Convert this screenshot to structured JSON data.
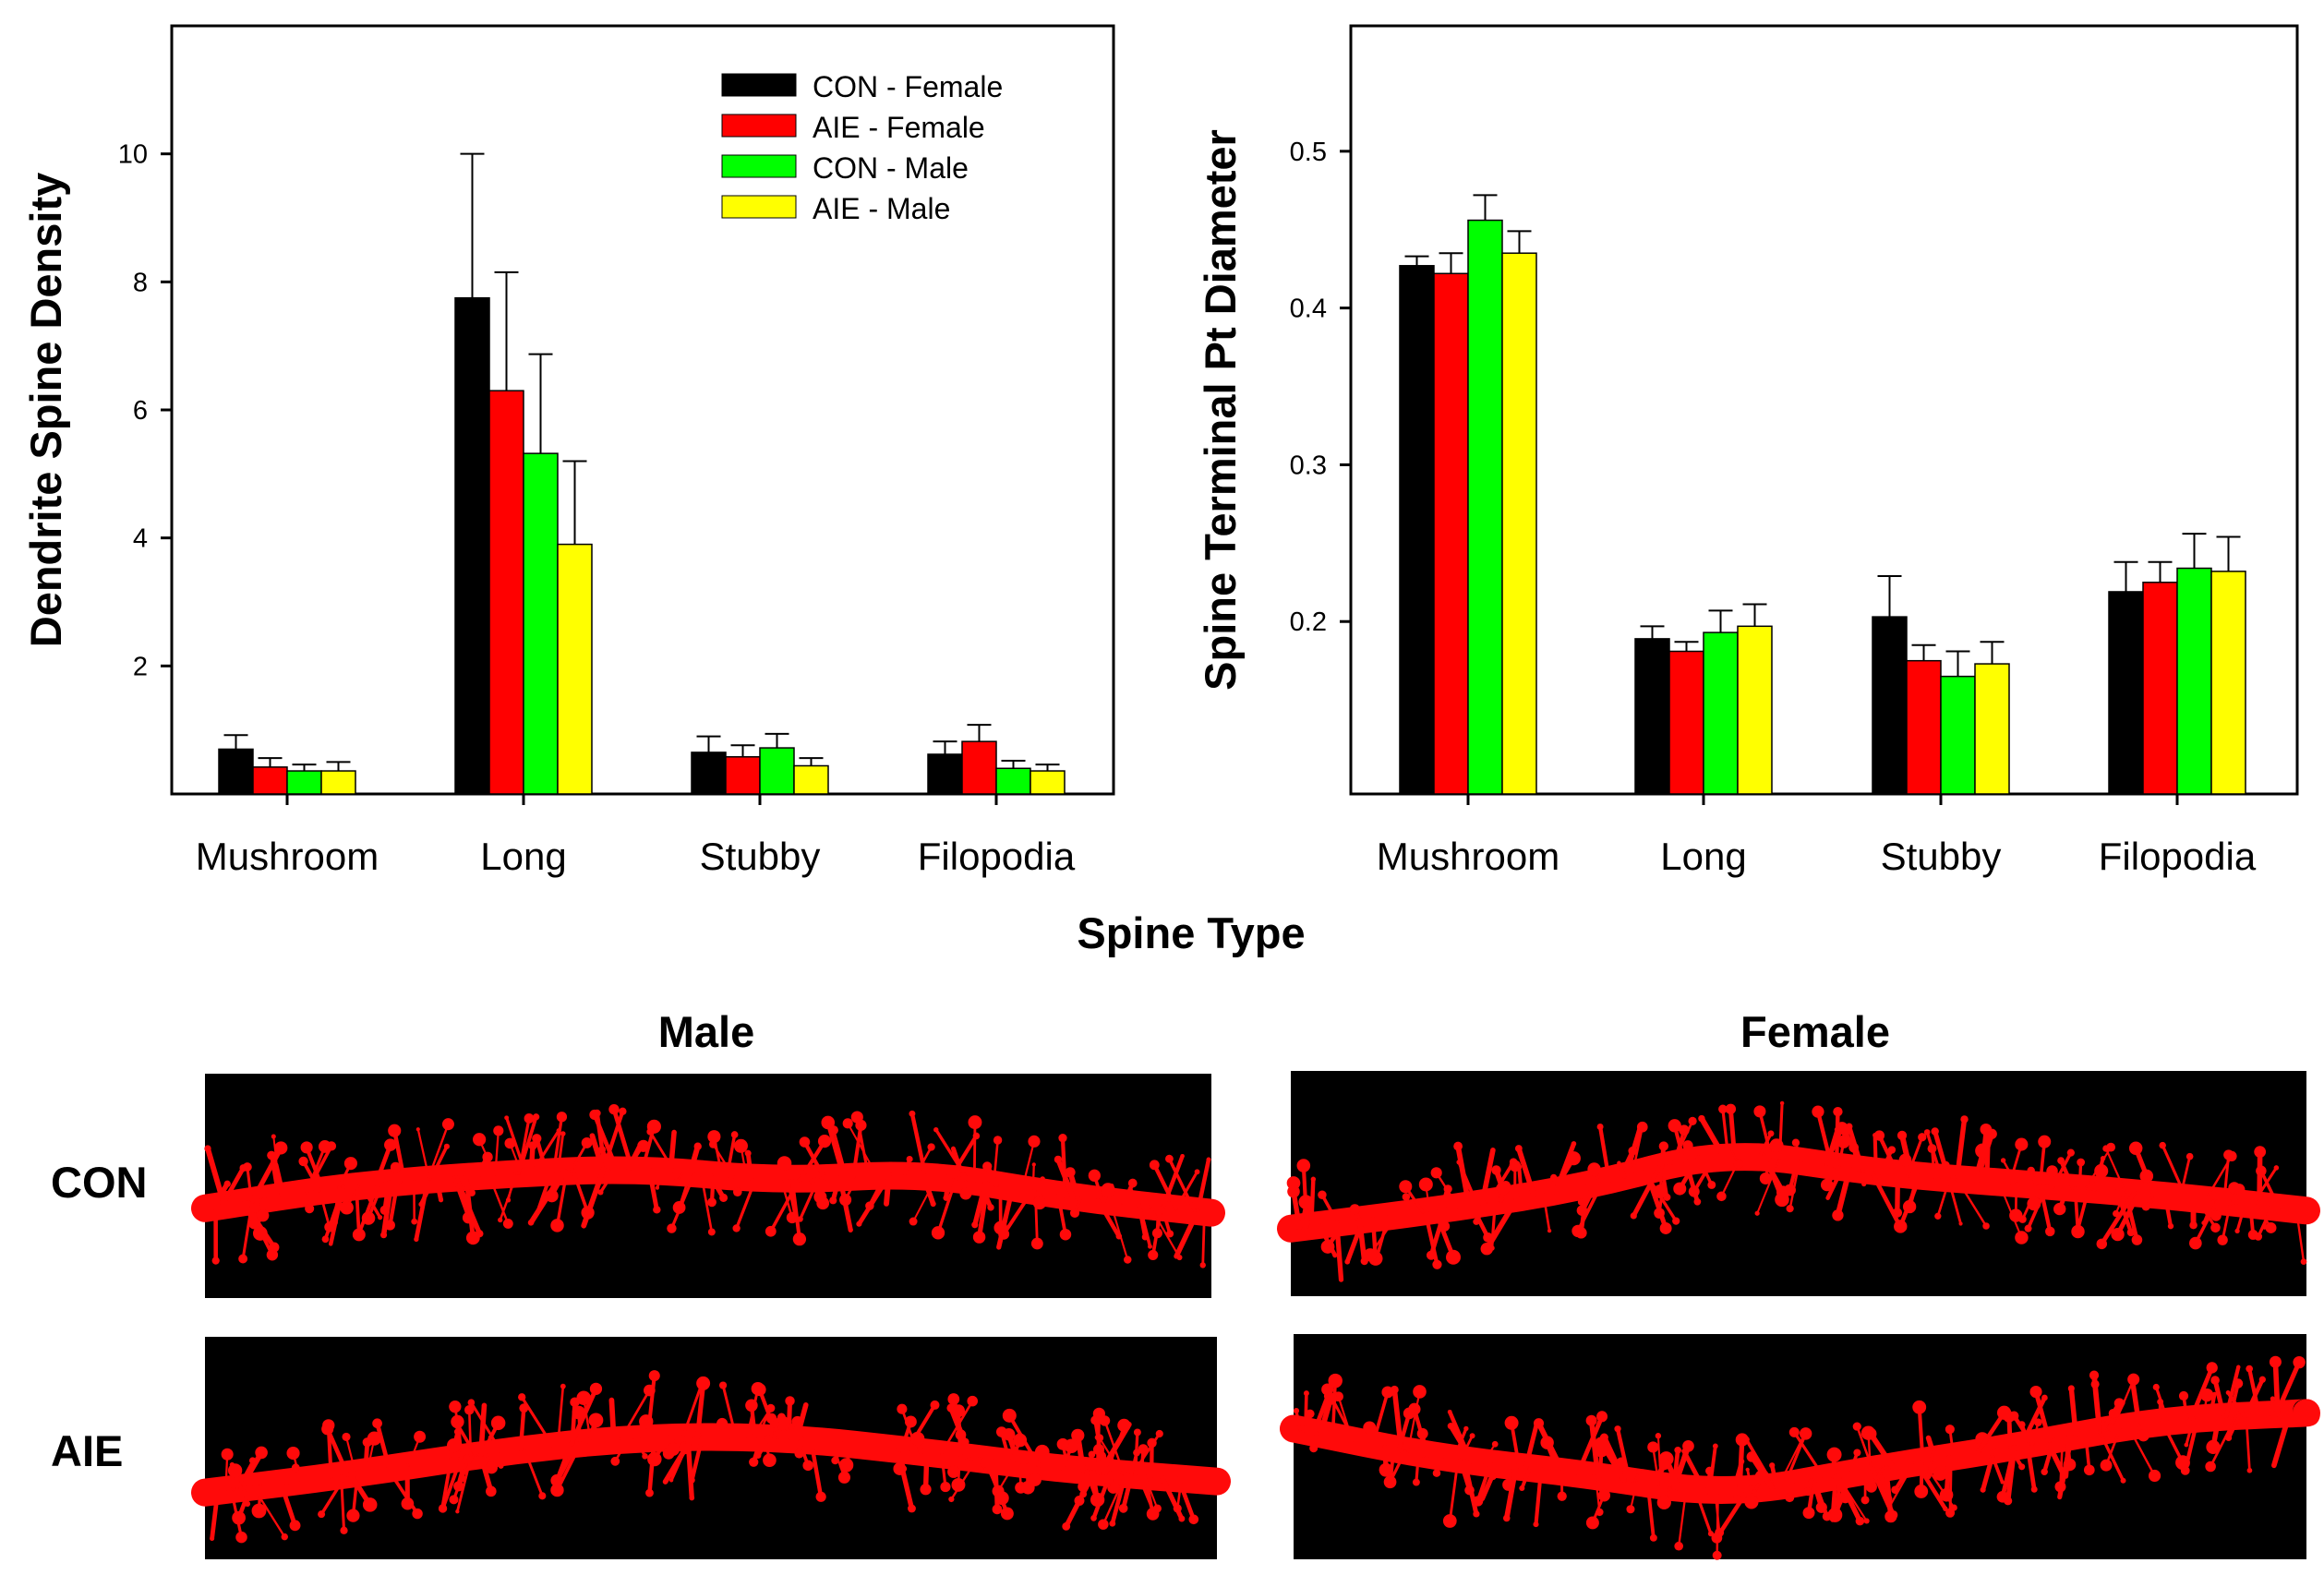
{
  "chart_data": [
    {
      "type": "bar",
      "id": "density",
      "ylabel": "Dendrite Spine Density",
      "xlabel": "Spine Type",
      "ylim": [
        0,
        12
      ],
      "yticks": [
        2,
        4,
        6,
        8,
        10
      ],
      "ytick_labels": [
        "2",
        "4",
        "6",
        "8",
        "10"
      ],
      "categories": [
        "Mushroom",
        "Long",
        "Stubby",
        "Filopodia"
      ],
      "legend_position": "top-right",
      "series": [
        {
          "name": "CON - Female",
          "color": "#000000",
          "values": [
            0.7,
            7.75,
            0.65,
            0.62
          ],
          "errors": [
            0.22,
            2.25,
            0.25,
            0.2
          ]
        },
        {
          "name": "AIE - Female",
          "color": "#ff0000",
          "values": [
            0.42,
            6.3,
            0.58,
            0.82
          ],
          "errors": [
            0.14,
            1.85,
            0.18,
            0.26
          ]
        },
        {
          "name": "CON - Male",
          "color": "#00ff00",
          "values": [
            0.36,
            5.32,
            0.72,
            0.4
          ],
          "errors": [
            0.1,
            1.55,
            0.22,
            0.12
          ]
        },
        {
          "name": "AIE - Male",
          "color": "#ffff00",
          "values": [
            0.36,
            3.9,
            0.44,
            0.36
          ],
          "errors": [
            0.14,
            1.3,
            0.12,
            0.1
          ]
        }
      ]
    },
    {
      "type": "bar",
      "id": "diameter",
      "ylabel": "Spine Terminal Pt Diameter",
      "xlabel": "Spine Type",
      "ylim": [
        0.09,
        0.58
      ],
      "yticks": [
        0.2,
        0.3,
        0.4,
        0.5
      ],
      "ytick_labels": [
        "0.2",
        "0.3",
        "0.4",
        "0.5"
      ],
      "categories": [
        "Mushroom",
        "Long",
        "Stubby",
        "Filopodia"
      ],
      "series": [
        {
          "name": "CON - Female",
          "color": "#000000",
          "values": [
            0.427,
            0.189,
            0.203,
            0.219
          ],
          "errors": [
            0.006,
            0.008,
            0.026,
            0.019
          ]
        },
        {
          "name": "AIE - Female",
          "color": "#ff0000",
          "values": [
            0.422,
            0.181,
            0.175,
            0.225
          ],
          "errors": [
            0.013,
            0.006,
            0.01,
            0.013
          ]
        },
        {
          "name": "CON - Male",
          "color": "#00ff00",
          "values": [
            0.456,
            0.193,
            0.165,
            0.234
          ],
          "errors": [
            0.016,
            0.014,
            0.016,
            0.022
          ]
        },
        {
          "name": "AIE - Male",
          "color": "#ffff00",
          "values": [
            0.435,
            0.197,
            0.173,
            0.232
          ],
          "errors": [
            0.014,
            0.014,
            0.014,
            0.022
          ]
        }
      ]
    }
  ],
  "shared_xlabel": "Spine Type",
  "micrographs": {
    "columns": [
      "Male",
      "Female"
    ],
    "rows": [
      "CON",
      "AIE"
    ]
  },
  "colors": {
    "background": "#ffffff",
    "image_background": "#000000",
    "dendrite": "#ff0a0a"
  }
}
